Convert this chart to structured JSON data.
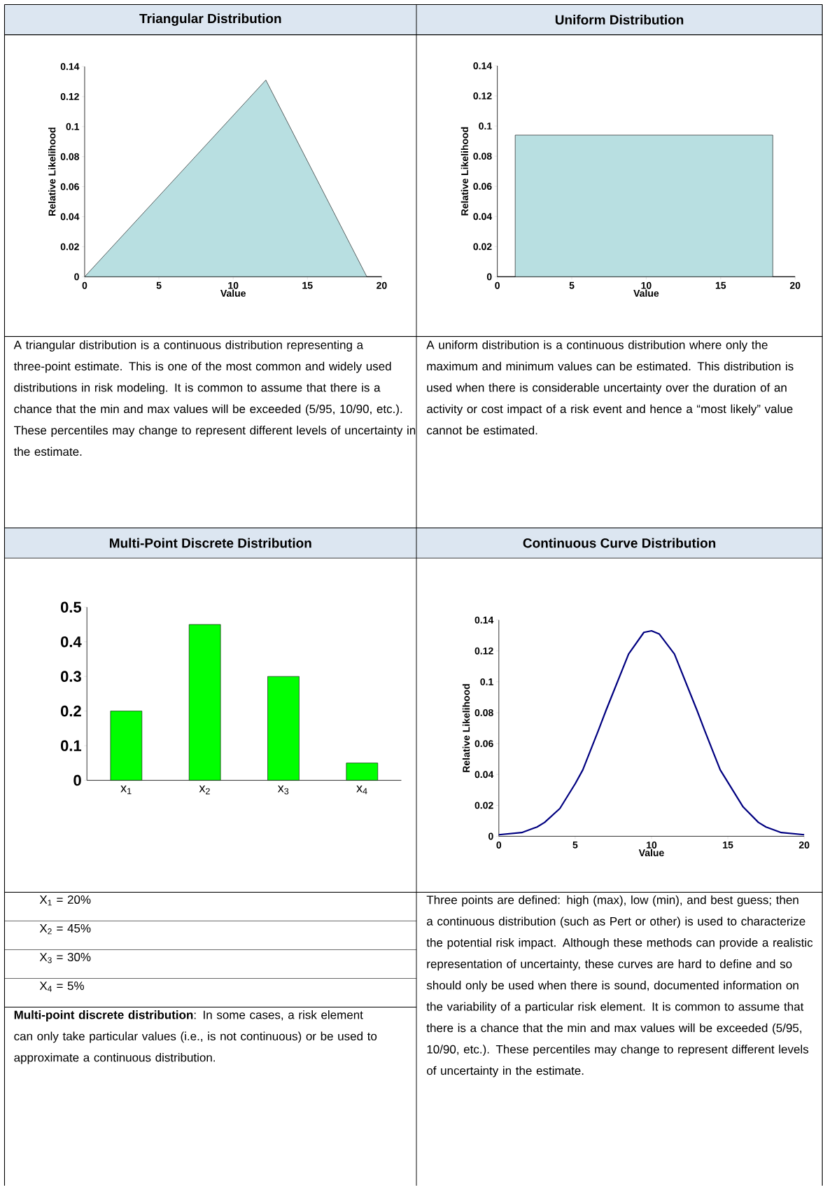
{
  "chart_data": [
    {
      "type": "area",
      "title": "Triangular Distribution",
      "xlabel": "Value",
      "ylabel": "Relative Likelihood",
      "x": [
        0,
        12.2,
        19,
        20
      ],
      "series": [
        {
          "color": "#b8dfe1",
          "values": [
            0,
            0.131,
            0,
            0
          ]
        }
      ],
      "xlim": [
        0,
        20
      ],
      "ylim": [
        0,
        0.14
      ],
      "xticks": [
        0,
        5,
        10,
        15,
        20
      ],
      "yticks": [
        0,
        0.02,
        0.04,
        0.06,
        0.08,
        0.1,
        0.12,
        0.14
      ],
      "annotations": [
        "A triangular distribution is a continuous distribution representing a three-point estimate.  This is one of the most common and widely used distributions in risk modeling. It is common to assume that there is a chance that the min and max values will be exceeded (5/95, 10/90, etc.). These percentiles may change to represent different levels of uncertainty in the estimate."
      ]
    },
    {
      "type": "area",
      "title": "Uniform Distribution",
      "xlabel": "Value",
      "ylabel": "Relative Likelihood",
      "x": [
        0,
        1.2,
        1.2,
        18.5,
        18.5,
        20
      ],
      "series": [
        {
          "color": "#b8dfe1",
          "values": [
            0,
            0,
            0.094,
            0.094,
            0,
            0
          ]
        }
      ],
      "xlim": [
        0,
        20
      ],
      "ylim": [
        0,
        0.14
      ],
      "xticks": [
        0,
        5,
        10,
        15,
        20
      ],
      "yticks": [
        0,
        0.02,
        0.04,
        0.06,
        0.08,
        0.1,
        0.12,
        0.14
      ],
      "annotations": [
        "A uniform distribution is a continuous distribution where only the maximum and minimum values can be estimated. This distribution is used when there is considerable uncertainty over the duration of an activity or cost impact of a risk event and hence a “most likely” value cannot be estimated."
      ]
    },
    {
      "type": "bar",
      "title": "Multi-Point Discrete Distribution",
      "categories": [
        "x$_{1}$",
        "x$_{2}$",
        "x$_{3}$",
        "x$_{4}$"
      ],
      "values": [
        0.2,
        0.45,
        0.3,
        0.05
      ],
      "color": "#00ff00",
      "ylim": [
        0,
        0.5
      ],
      "yticks": [
        0,
        0.1,
        0.2,
        0.3,
        0.4,
        0.5
      ],
      "annotations": [
        "X$_{1}$ = 20%",
        "X$_{2}$ = 45%",
        "X$_{3}$ = 30%",
        "X$_{4}$ = 5%",
        "**Multi-point discrete distribution**: In some cases, a risk element can only take particular values (i.e., is not continuous) or be used to approximate a continuous distribution."
      ]
    },
    {
      "type": "line",
      "title": "Continuous Curve Distribution",
      "xlabel": "Value",
      "ylabel": "Relative Likelihood",
      "x": [
        0,
        1.5,
        2.5,
        3,
        4,
        5,
        5.5,
        6.5,
        7,
        8.5,
        9.5,
        10,
        10.5,
        11.5,
        13,
        13.5,
        14.5,
        16,
        17,
        17.5,
        18.5,
        20
      ],
      "series": [
        {
          "color": "#000080",
          "values": [
            0.001,
            0.0024,
            0.006,
            0.009,
            0.018,
            0.034,
            0.043,
            0.068,
            0.081,
            0.118,
            0.132,
            0.133,
            0.131,
            0.118,
            0.081,
            0.068,
            0.043,
            0.019,
            0.009,
            0.006,
            0.0024,
            0.001
          ]
        }
      ],
      "xlim": [
        0,
        20
      ],
      "ylim": [
        0,
        0.14
      ],
      "xticks": [
        0,
        5,
        10,
        15,
        20
      ],
      "yticks": [
        0,
        0.02,
        0.04,
        0.06,
        0.08,
        0.1,
        0.12,
        0.14
      ],
      "annotations": [
        "Three points are defined: high (max), low (min), and best guess; then a continuous distribution (such as Pert or other) is used to characterize the potential risk impact. Although these methods can provide a realistic representation of uncertainty, these curves are hard to define and so should only be used when there is sound, documented information on the variability of a particular risk element. It is common to assume that there is a chance that the min and max values will be exceeded (5/95, 10/90, etc.). These percentiles may change to represent different levels of uncertainty in the estimate."
      ]
    }
  ]
}
